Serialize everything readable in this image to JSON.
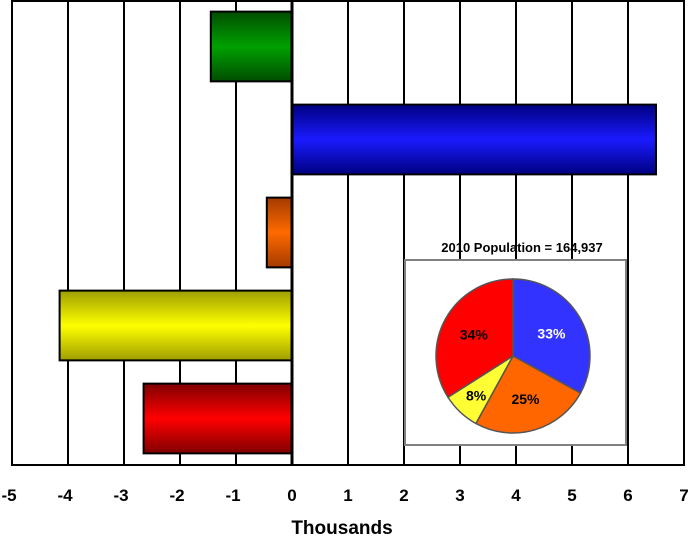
{
  "chart_data": [
    {
      "type": "bar",
      "orientation": "horizontal",
      "title": "",
      "xlabel": "Thousands",
      "xlim": [
        -5,
        7
      ],
      "xticks": [
        "-5",
        "-4",
        "-3",
        "-2",
        "-1",
        "0",
        "1",
        "2",
        "3",
        "4",
        "5",
        "6",
        "7"
      ],
      "grid": "vertical",
      "bars": [
        {
          "value": -1.45,
          "color": "#008000"
        },
        {
          "value": 6.5,
          "color": "#0000ff"
        },
        {
          "value": -0.45,
          "color": "#ff6600"
        },
        {
          "value": -4.15,
          "color": "#ffff00"
        },
        {
          "value": -2.65,
          "color": "#ff0000"
        }
      ]
    },
    {
      "type": "pie",
      "title": "2010 Population = 164,937",
      "slices": [
        {
          "label": "33%",
          "value": 33,
          "color": "#3333ff",
          "label_color": "#ffffff"
        },
        {
          "label": "25%",
          "value": 25,
          "color": "#ff6600",
          "label_color": "#000000"
        },
        {
          "label": "8%",
          "value": 8,
          "color": "#ffff33",
          "label_color": "#000000"
        },
        {
          "label": "34%",
          "value": 34,
          "color": "#ff0000",
          "label_color": "#000000"
        }
      ]
    }
  ]
}
